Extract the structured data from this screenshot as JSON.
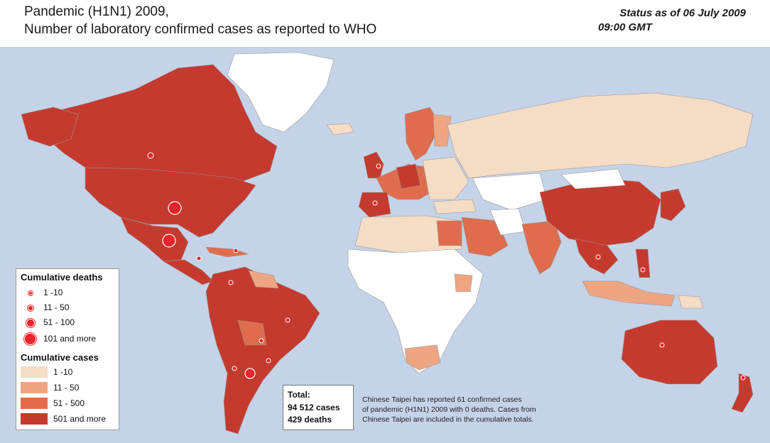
{
  "header": {
    "title_line1": "Pandemic (H1N1) 2009,",
    "title_line2": "Number of  laboratory confirmed cases as reported to WHO",
    "status_line1": "Status as of 06 July 2009",
    "status_line2": "09:00 GMT"
  },
  "legend": {
    "deaths_heading": "Cumulative deaths",
    "deaths": [
      {
        "label": "1 -10"
      },
      {
        "label": "11 - 50"
      },
      {
        "label": "51 - 100"
      },
      {
        "label": "101 and more"
      }
    ],
    "cases_heading": "Cumulative cases",
    "cases": [
      {
        "label": "1 -10",
        "color": "#f5dcc4"
      },
      {
        "label": "11 - 50",
        "color": "#eea582"
      },
      {
        "label": "51 - 500",
        "color": "#df6d4d"
      },
      {
        "label": "501 and more",
        "color": "#c53a2e"
      }
    ]
  },
  "totals": {
    "label": "Total:",
    "cases": "94 512 cases",
    "deaths": "429 deaths"
  },
  "note": {
    "line1": "Chinese Taipei has reported 61 confirmed cases",
    "line2": "of pandemic (H1N1) 2009 with 0 deaths. Cases from",
    "line3": "Chinese Taipei are included in the cumulative totals."
  },
  "colors": {
    "ocean": "#c5d3e8",
    "none": "#ffffff",
    "c1": "#f5dcc4",
    "c2": "#eea582",
    "c3": "#df6d4d",
    "c4": "#c53a2e",
    "death_dot": "#e8252b"
  }
}
